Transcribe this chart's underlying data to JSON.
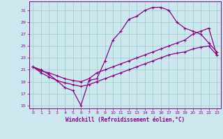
{
  "xlabel": "Windchill (Refroidissement éolien,°C)",
  "background_color": "#cce8ee",
  "line_color": "#880088",
  "grid_color": "#99cccc",
  "xlim": [
    -0.5,
    23.5
  ],
  "ylim": [
    14.5,
    32.5
  ],
  "xticks": [
    0,
    1,
    2,
    3,
    4,
    5,
    6,
    7,
    8,
    9,
    10,
    11,
    12,
    13,
    14,
    15,
    16,
    17,
    18,
    19,
    20,
    21,
    22,
    23
  ],
  "yticks": [
    15,
    17,
    19,
    21,
    23,
    25,
    27,
    29,
    31
  ],
  "line1_x": [
    0,
    1,
    2,
    3,
    4,
    5,
    6,
    7,
    8,
    9,
    10,
    11,
    12,
    13,
    14,
    15,
    16,
    17,
    18,
    19,
    20,
    21,
    22,
    23
  ],
  "line1_y": [
    21.5,
    21.0,
    20.2,
    19.2,
    18.0,
    17.5,
    15.0,
    19.2,
    19.5,
    22.5,
    26.0,
    27.5,
    29.5,
    30.0,
    31.0,
    31.5,
    31.5,
    31.0,
    29.0,
    28.0,
    27.5,
    27.0,
    25.5,
    24.0
  ],
  "line2_x": [
    0,
    1,
    2,
    3,
    4,
    5,
    6,
    7,
    8,
    9,
    10,
    11,
    12,
    13,
    14,
    15,
    16,
    17,
    18,
    19,
    20,
    21,
    22,
    23
  ],
  "line2_y": [
    21.5,
    20.8,
    20.5,
    20.0,
    19.5,
    19.2,
    19.0,
    19.5,
    20.5,
    21.0,
    21.5,
    22.0,
    22.5,
    23.0,
    23.5,
    24.0,
    24.5,
    25.0,
    25.5,
    26.0,
    27.0,
    27.5,
    28.0,
    23.5
  ],
  "line3_x": [
    0,
    1,
    2,
    3,
    4,
    5,
    6,
    7,
    8,
    9,
    10,
    11,
    12,
    13,
    14,
    15,
    16,
    17,
    18,
    19,
    20,
    21,
    22,
    23
  ],
  "line3_y": [
    21.5,
    20.5,
    19.8,
    19.2,
    18.8,
    18.5,
    18.2,
    18.5,
    19.0,
    19.5,
    20.0,
    20.5,
    21.0,
    21.5,
    22.0,
    22.5,
    23.0,
    23.5,
    23.8,
    24.0,
    24.5,
    24.8,
    25.0,
    23.5
  ]
}
